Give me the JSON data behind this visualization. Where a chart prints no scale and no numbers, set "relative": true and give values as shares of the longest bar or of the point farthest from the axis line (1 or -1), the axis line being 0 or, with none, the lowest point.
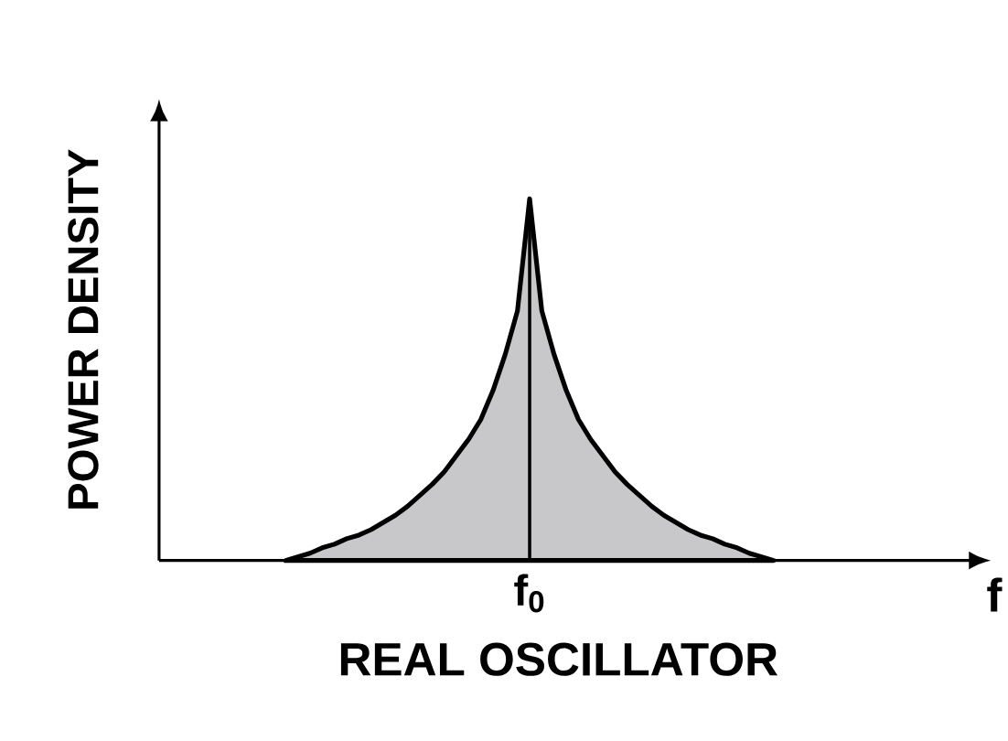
{
  "chart_data": {
    "type": "area",
    "relative": true,
    "title": "REAL OSCILLATOR",
    "xlabel": "f",
    "ylabel": "POWER DENSITY",
    "categories": [
      null,
      null,
      null,
      null,
      null,
      null,
      null,
      null,
      null,
      null,
      null,
      null,
      null,
      null,
      null,
      null,
      null,
      null,
      null,
      null,
      null,
      null,
      null,
      null,
      null,
      null,
      null,
      null,
      null,
      null,
      null,
      null,
      null,
      null,
      null,
      null,
      null,
      null,
      null,
      null,
      null
    ],
    "series": [
      {
        "color": "#c8c8ca",
        "values": [
          0,
          0.01,
          0.02,
          0.035,
          0.045,
          0.06,
          0.07,
          0.085,
          0.105,
          0.125,
          0.15,
          0.18,
          0.21,
          0.245,
          0.29,
          0.335,
          0.39,
          0.47,
          0.57,
          0.69,
          1,
          0.69,
          0.57,
          0.47,
          0.39,
          0.335,
          0.29,
          0.245,
          0.21,
          0.18,
          0.15,
          0.125,
          0.105,
          0.085,
          0.07,
          0.06,
          0.045,
          0.035,
          0.02,
          0.01,
          0
        ]
      }
    ],
    "annotations": [
      "f$_{0}$"
    ]
  }
}
